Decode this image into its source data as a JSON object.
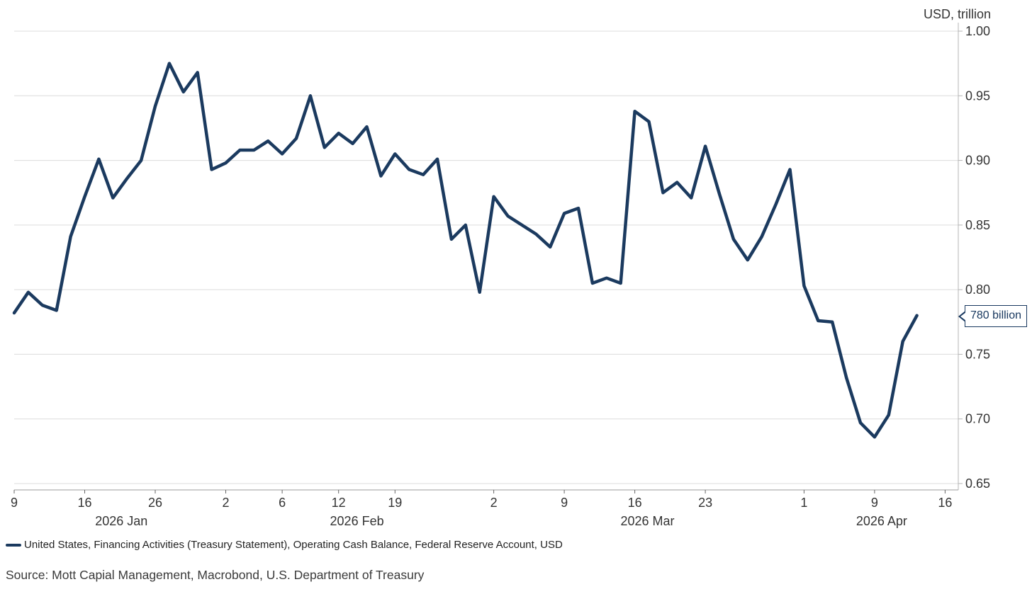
{
  "chart": {
    "y_axis": {
      "unit": "USD, trillion",
      "tick_labels": [
        "1.00",
        "0.95",
        "0.90",
        "0.85",
        "0.80",
        "0.75",
        "0.70",
        "0.65"
      ],
      "tick_values": [
        1.0,
        0.95,
        0.9,
        0.85,
        0.8,
        0.75,
        0.7,
        0.65
      ]
    },
    "x_axis": {
      "ticks": [
        {
          "label": "9",
          "index": 0
        },
        {
          "label": "16",
          "index": 5
        },
        {
          "label": "26",
          "index": 10
        },
        {
          "label": "2",
          "index": 15
        },
        {
          "label": "6",
          "index": 19
        },
        {
          "label": "12",
          "index": 23
        },
        {
          "label": "19",
          "index": 27
        },
        {
          "label": "2",
          "index": 34
        },
        {
          "label": "9",
          "index": 39
        },
        {
          "label": "16",
          "index": 44
        },
        {
          "label": "23",
          "index": 49
        },
        {
          "label": "1",
          "index": 56
        },
        {
          "label": "9",
          "index": 61
        },
        {
          "label": "16",
          "index": 66
        }
      ],
      "months": [
        {
          "label": "2026 Jan",
          "center_index": 7.6
        },
        {
          "label": "2026 Feb",
          "center_index": 24.3
        },
        {
          "label": "2026 Mar",
          "center_index": 44.9
        },
        {
          "label": "2026 Apr",
          "center_index": 61.5
        }
      ]
    },
    "callout": {
      "text": "780 billion",
      "value": 0.78
    }
  },
  "chart_data": {
    "type": "line",
    "title": "",
    "xlabel": "",
    "ylabel": "USD, trillion",
    "ylim": [
      0.65,
      1.0
    ],
    "grid": "horizontal",
    "legend_position": "bottom-left",
    "series": [
      {
        "name": "United States, Financing Activities (Treasury Statement), Operating Cash Balance, Federal Reserve Account, USD",
        "color": "#1b3a5f",
        "dates": [
          "2026-01-09",
          "2026-01-12",
          "2026-01-13",
          "2026-01-14",
          "2026-01-15",
          "2026-01-16",
          "2026-01-20",
          "2026-01-21",
          "2026-01-22",
          "2026-01-23",
          "2026-01-26",
          "2026-01-27",
          "2026-01-28",
          "2026-01-29",
          "2026-01-30",
          "2026-02-02",
          "2026-02-03",
          "2026-02-04",
          "2026-02-05",
          "2026-02-06",
          "2026-02-09",
          "2026-02-10",
          "2026-02-11",
          "2026-02-12",
          "2026-02-13",
          "2026-02-17",
          "2026-02-18",
          "2026-02-19",
          "2026-02-20",
          "2026-02-23",
          "2026-02-24",
          "2026-02-25",
          "2026-02-26",
          "2026-02-27",
          "2026-03-02",
          "2026-03-03",
          "2026-03-04",
          "2026-03-05",
          "2026-03-06",
          "2026-03-09",
          "2026-03-10",
          "2026-03-11",
          "2026-03-12",
          "2026-03-13",
          "2026-03-16",
          "2026-03-17",
          "2026-03-18",
          "2026-03-19",
          "2026-03-20",
          "2026-03-23",
          "2026-03-24",
          "2026-03-25",
          "2026-03-26",
          "2026-03-27",
          "2026-03-30",
          "2026-03-31",
          "2026-04-01",
          "2026-04-02",
          "2026-04-06",
          "2026-04-07",
          "2026-04-08",
          "2026-04-09",
          "2026-04-10",
          "2026-04-13",
          "2026-04-14"
        ],
        "values": [
          0.782,
          0.798,
          0.788,
          0.784,
          0.841,
          0.872,
          0.901,
          0.871,
          0.886,
          0.9,
          0.942,
          0.975,
          0.953,
          0.968,
          0.893,
          0.898,
          0.908,
          0.908,
          0.915,
          0.905,
          0.917,
          0.95,
          0.91,
          0.921,
          0.913,
          0.926,
          0.888,
          0.905,
          0.893,
          0.889,
          0.901,
          0.839,
          0.85,
          0.798,
          0.872,
          0.857,
          0.85,
          0.843,
          0.833,
          0.859,
          0.863,
          0.805,
          0.809,
          0.805,
          0.938,
          0.93,
          0.875,
          0.883,
          0.871,
          0.911,
          0.874,
          0.839,
          0.823,
          0.841,
          0.866,
          0.893,
          0.803,
          0.776,
          0.775,
          0.732,
          0.697,
          0.686,
          0.703,
          0.76,
          0.78
        ]
      }
    ]
  },
  "legend": {
    "label": "United States, Financing Activities (Treasury Statement), Operating Cash Balance, Federal Reserve Account, USD"
  },
  "source": {
    "text": "Source: Mott Capial Management, Macrobond, U.S. Department of Treasury"
  },
  "colors": {
    "line": "#1b3a5f",
    "gridline": "#dcdcdc",
    "axis_line": "#9b9b9b",
    "right_axis_line": "#b5b5b5",
    "tick_mark": "#666666",
    "tick_text": "#333333",
    "callout_border": "#17375e"
  }
}
